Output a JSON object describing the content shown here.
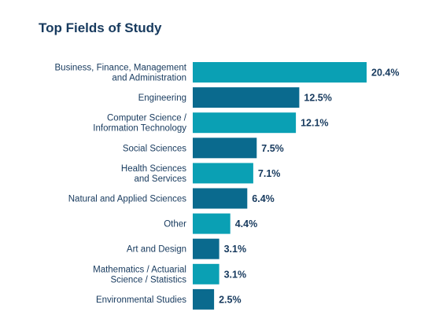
{
  "chart_data": {
    "type": "bar",
    "orientation": "horizontal",
    "title": "Top Fields of Study",
    "xlabel": "",
    "ylabel": "",
    "xlim": [
      0,
      20.4
    ],
    "grid": false,
    "legend": "none",
    "categories": [
      "Business, Finance, Management and Administration",
      "Engineering",
      "Computer Science / Information Technology",
      "Social Sciences",
      "Health Sciences and Services",
      "Natural and Applied Sciences",
      "Other",
      "Art and Design",
      "Mathematics / Actuarial Science / Statistics",
      "Environmental Studies"
    ],
    "category_label_lines": [
      [
        "Business, Finance, Management",
        "and Administration"
      ],
      [
        "Engineering"
      ],
      [
        "Computer Science /",
        "Information Technology"
      ],
      [
        "Social Sciences"
      ],
      [
        "Health Sciences",
        "and Services"
      ],
      [
        "Natural and Applied Sciences"
      ],
      [
        "Other"
      ],
      [
        "Art and Design"
      ],
      [
        "Mathematics / Actuarial",
        "Science / Statistics"
      ],
      [
        "Environmental Studies"
      ]
    ],
    "values": [
      20.4,
      12.5,
      12.1,
      7.5,
      7.1,
      6.4,
      4.4,
      3.1,
      3.1,
      2.5
    ],
    "value_labels": [
      "20.4%",
      "12.5%",
      "12.1%",
      "7.5%",
      "7.1%",
      "6.4%",
      "4.4%",
      "3.1%",
      "3.1%",
      "2.5%"
    ],
    "colors": {
      "light": "#0aa0b4",
      "dark": "#0a6a8e",
      "text": "#173a5e"
    },
    "bar_color_pattern": [
      "light",
      "dark",
      "light",
      "dark",
      "light",
      "dark",
      "light",
      "dark",
      "light",
      "dark"
    ]
  }
}
